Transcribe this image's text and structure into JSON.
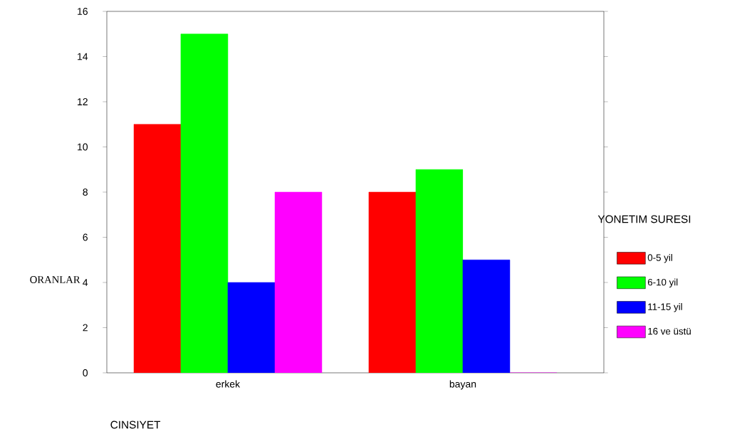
{
  "chart_data": {
    "type": "bar",
    "categories": [
      "erkek",
      "bayan"
    ],
    "series": [
      {
        "name": "0-5 yil",
        "color": "#ff0000",
        "values": [
          11,
          8
        ]
      },
      {
        "name": "6-10 yil",
        "color": "#00ff00",
        "values": [
          15,
          9
        ]
      },
      {
        "name": "11-15 yil",
        "color": "#0000ff",
        "values": [
          4,
          5
        ]
      },
      {
        "name": "16 ve üstü",
        "color": "#ff00ff",
        "values": [
          8,
          0
        ]
      }
    ],
    "ylim": [
      0,
      16
    ],
    "yticks": [
      0,
      2,
      4,
      6,
      8,
      10,
      12,
      14,
      16
    ],
    "xlabel": "CINSIYET",
    "ylabel": "ORANLAR",
    "legend_title": "YONETIM SURESI",
    "legend": "right",
    "grid": false
  }
}
